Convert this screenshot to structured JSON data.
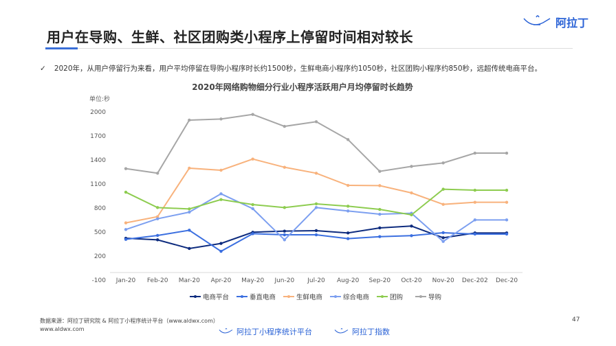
{
  "header": {
    "title": "用户在导购、生鲜、社区团购类小程序上停留时间相对较长",
    "logo_text": "阿拉丁"
  },
  "bullet": {
    "icon": "check-icon",
    "mark": "✓",
    "text": "2020年，从用户停留行为来看，用户平均停留在导购小程序时长约1500秒，生鲜电商小程序约1050秒，社区团购小程序约850秒，远超传统电商平台。"
  },
  "chart_data": {
    "type": "line",
    "title": "2020年网络购物细分行业小程序活跃用户月均停留时长趋势",
    "ylabel": "单位:秒",
    "xlabel": "",
    "ylim": [
      -100,
      2000
    ],
    "yticks": [
      "2000",
      "1700",
      "1400",
      "1100",
      "800",
      "500",
      "200",
      "-100"
    ],
    "ytick_values": [
      2000,
      1700,
      1400,
      1100,
      800,
      500,
      200,
      -100
    ],
    "categories": [
      "Jan-20",
      "Feb-20",
      "Mar-20",
      "Apr-20",
      "May-20",
      "Jun-20",
      "Jul-20",
      "Aug-20",
      "Sep-20",
      "Oct-20",
      "Nov-20",
      "Dec-202",
      "Dec-20"
    ],
    "legend_position": "bottom",
    "grid": false,
    "series": [
      {
        "name": "电商平台",
        "color": "#0d2b7e",
        "values": [
          414,
          394,
          286,
          349,
          489,
          503,
          509,
          480,
          543,
          566,
          420,
          480,
          480
        ]
      },
      {
        "name": "垂直电商",
        "color": "#3b6fe0",
        "values": [
          400,
          449,
          514,
          251,
          471,
          457,
          457,
          409,
          434,
          446,
          483,
          466,
          466
        ]
      },
      {
        "name": "生鲜电商",
        "color": "#f8b27c",
        "values": [
          606,
          683,
          1289,
          1263,
          1403,
          1300,
          1226,
          1074,
          1071,
          980,
          837,
          863,
          863
        ]
      },
      {
        "name": "综合电商",
        "color": "#7c9ff0",
        "values": [
          523,
          657,
          740,
          969,
          783,
          394,
          797,
          754,
          714,
          726,
          374,
          643,
          643
        ]
      },
      {
        "name": "团购",
        "color": "#8dcc4f",
        "values": [
          989,
          797,
          780,
          897,
          834,
          797,
          843,
          814,
          774,
          706,
          1026,
          1014,
          1014
        ]
      },
      {
        "name": "导购",
        "color": "#a6a6a6",
        "values": [
          1283,
          1226,
          1889,
          1903,
          1960,
          1811,
          1869,
          1646,
          1249,
          1311,
          1354,
          1477,
          1477
        ]
      }
    ]
  },
  "footer": {
    "source": "数据来源：阿拉丁研究院 & 阿拉丁小程序统计平台（www.aldwx.com）",
    "site": "www.aldwx.com",
    "page": "47",
    "logo1": "阿拉丁小程序统计平台",
    "logo2": "阿拉丁指数"
  }
}
